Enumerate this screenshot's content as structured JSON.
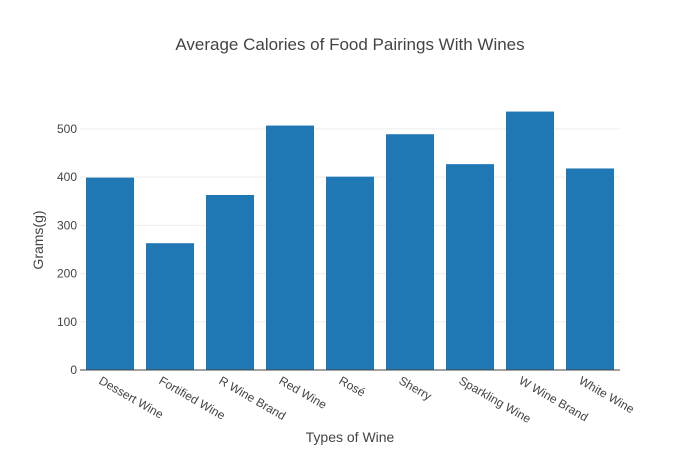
{
  "chart_data": {
    "type": "bar",
    "title": "Average Calories of Food Pairings With Wines",
    "xlabel": "Types of Wine",
    "ylabel": "Grams(g)",
    "categories": [
      "Dessert Wine",
      "Fortified Wine",
      "R Wine Brand",
      "Red Wine",
      "Rosé",
      "Sherry",
      "Sparkling Wine",
      "W Wine Brand",
      "White Wine"
    ],
    "values": [
      399,
      263,
      363,
      507,
      401,
      489,
      427,
      536,
      418
    ],
    "ylim": [
      0,
      560
    ],
    "yticks": [
      0,
      100,
      200,
      300,
      400,
      500
    ],
    "grid": true,
    "bar_color": "#1f77b4"
  }
}
